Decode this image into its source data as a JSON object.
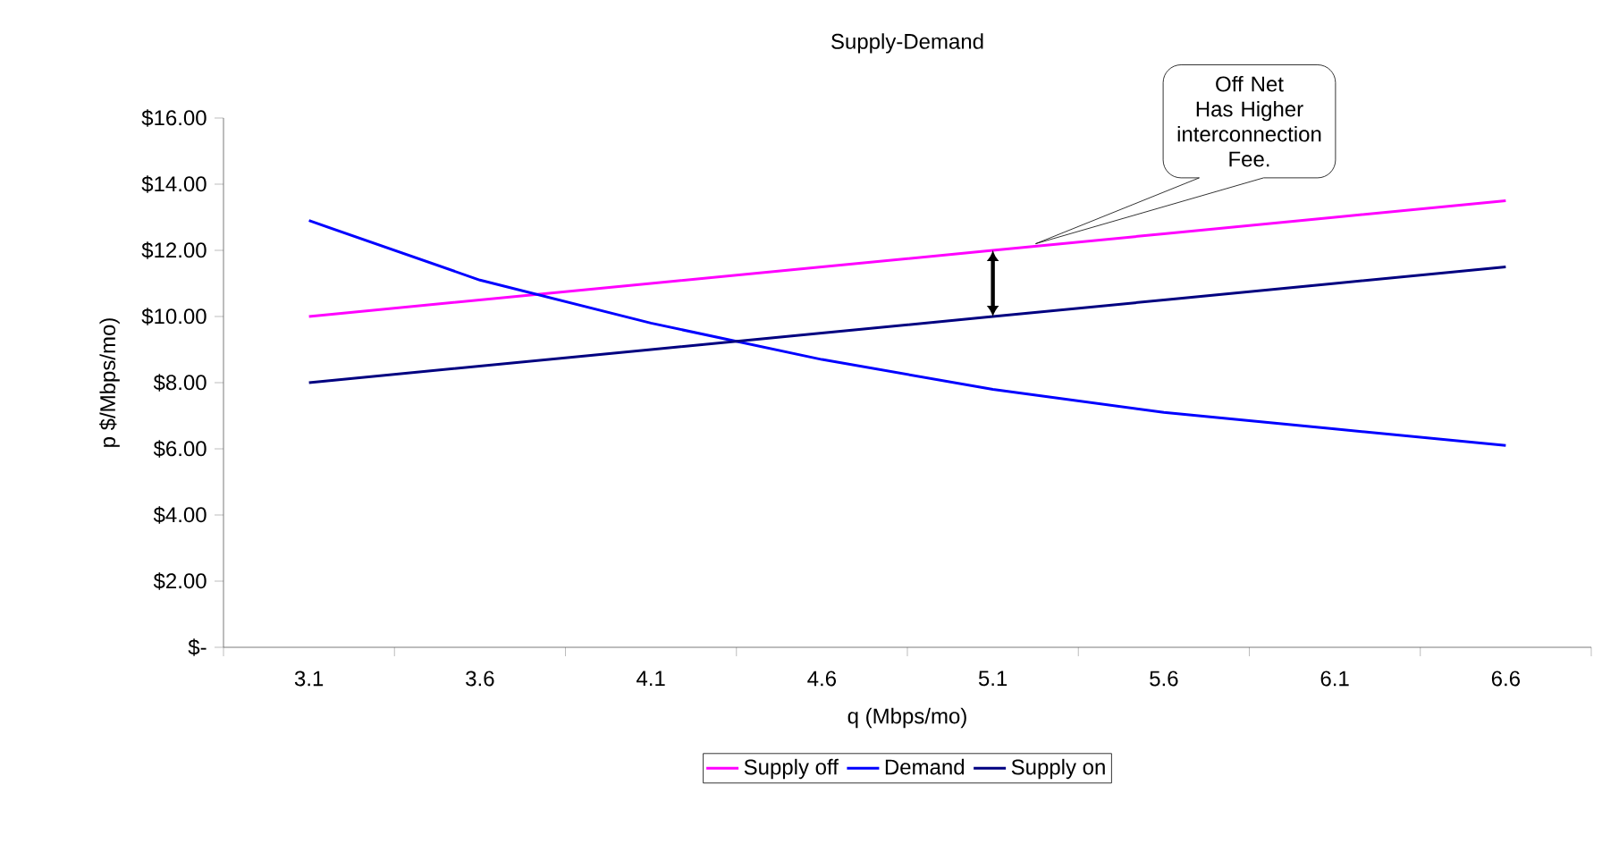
{
  "chart_data": {
    "type": "line",
    "title": "Supply-Demand",
    "xlabel": "q (Mbps/mo)",
    "ylabel": "p $/Mbps/mo)",
    "categories": [
      "3.1",
      "3.6",
      "4.1",
      "4.6",
      "5.1",
      "5.6",
      "6.1",
      "6.6"
    ],
    "series": [
      {
        "name": "Supply off",
        "color": "#ff00ff",
        "values": [
          10,
          10.5,
          11,
          11.5,
          12,
          12.5,
          13,
          13.5
        ]
      },
      {
        "name": "Demand",
        "color": "#0000ff",
        "values": [
          12.9,
          11.1,
          9.8,
          8.7,
          7.8,
          7.1,
          6.6,
          6.1
        ]
      },
      {
        "name": "Supply on",
        "color": "#000080",
        "values": [
          8,
          8.5,
          9,
          9.5,
          10,
          10.5,
          11,
          11.5
        ]
      }
    ],
    "ylim": [
      0,
      16
    ],
    "yticks": [
      {
        "value": 0,
        "label": "$-"
      },
      {
        "value": 2,
        "label": "$2.00"
      },
      {
        "value": 4,
        "label": "$4.00"
      },
      {
        "value": 6,
        "label": "$6.00"
      },
      {
        "value": 8,
        "label": "$8.00"
      },
      {
        "value": 10,
        "label": "$10.00"
      },
      {
        "value": 12,
        "label": "$12.00"
      },
      {
        "value": 14,
        "label": "$14.00"
      },
      {
        "value": 16,
        "label": "$16.00"
      }
    ],
    "annotations": [
      "Off Net Has Higher interconnection Fee."
    ],
    "legend": "bottom",
    "grid": false,
    "line_style": "solid"
  }
}
